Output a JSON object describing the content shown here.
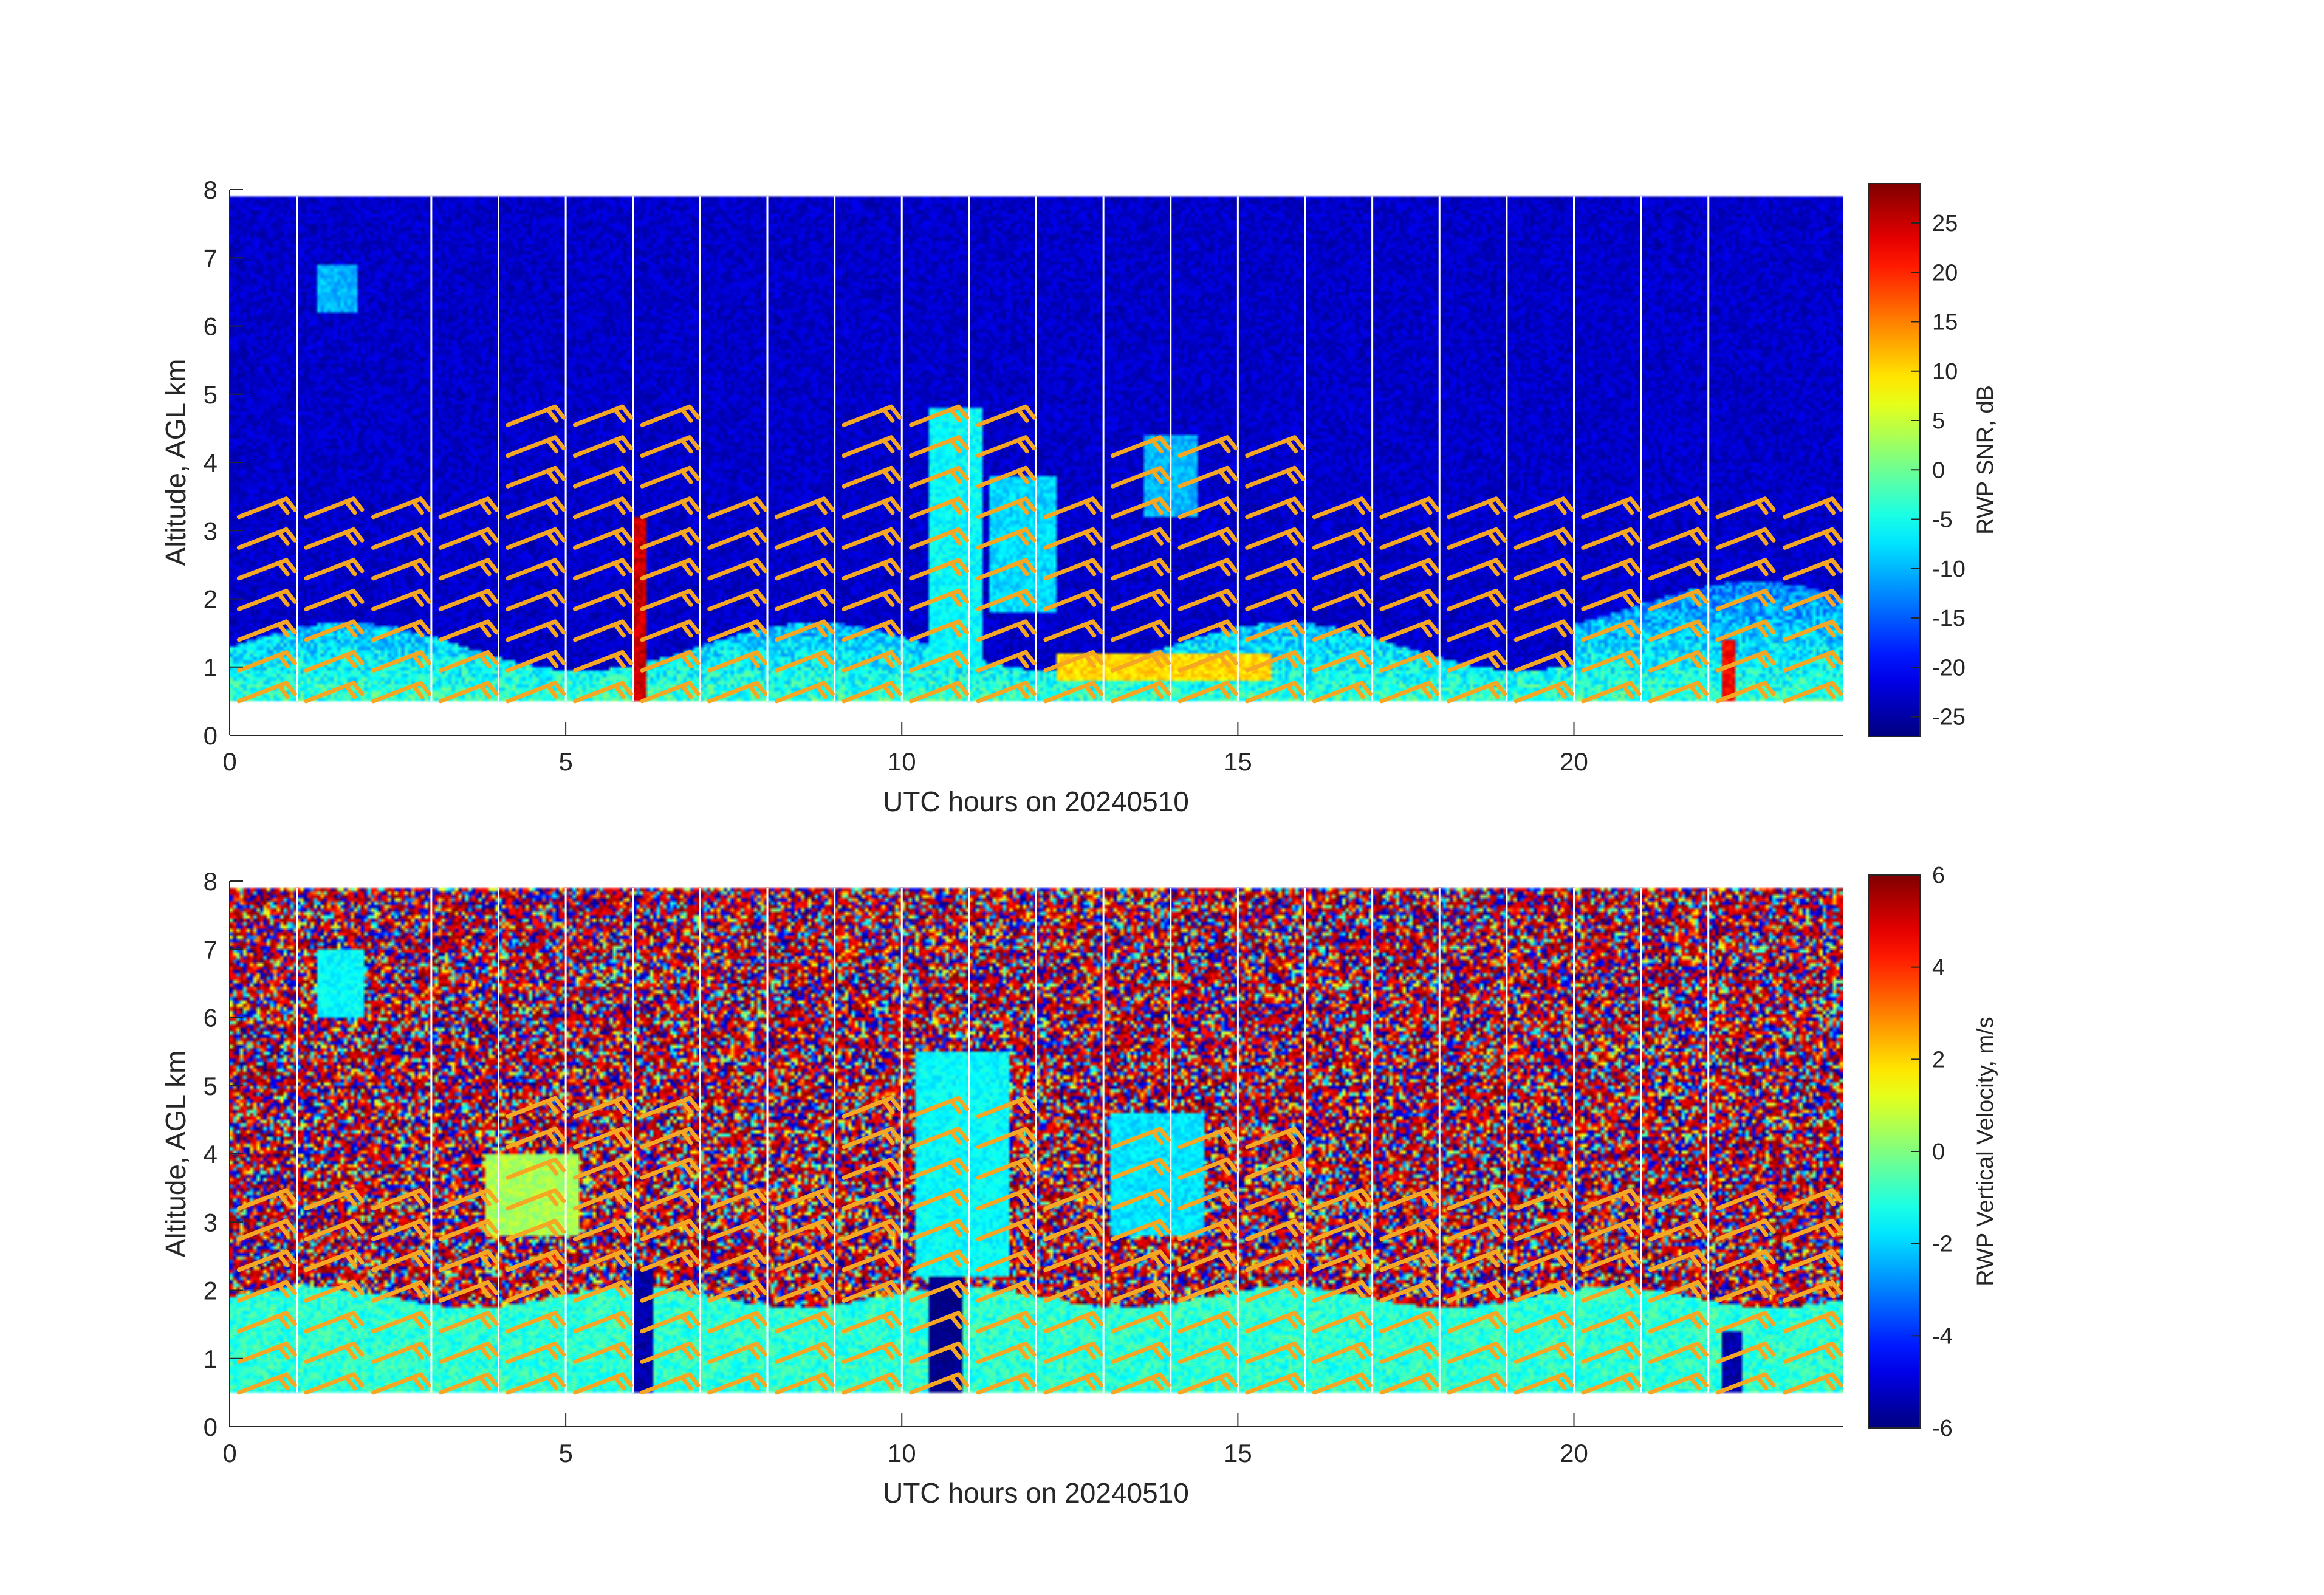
{
  "chart_data": [
    {
      "type": "heatmap",
      "xlabel": "UTC hours on 20240510",
      "ylabel": "Altitude, AGL km",
      "xlim": [
        0,
        24
      ],
      "ylim": [
        0,
        8
      ],
      "xticks": [
        0,
        5,
        10,
        15,
        20
      ],
      "yticks": [
        0,
        1,
        2,
        3,
        4,
        5,
        6,
        7,
        8
      ],
      "colorbar": {
        "label": "RWP SNR, dB",
        "range": [
          -27,
          29
        ],
        "ticks": [
          -25,
          -20,
          -15,
          -10,
          -5,
          0,
          5,
          10,
          15,
          20,
          25
        ],
        "colormap": "jet"
      },
      "data_altitude_range_km": [
        0.5,
        7.9
      ],
      "background_level": -23,
      "boundary_layer": {
        "top_km": 1.3,
        "level": -3
      },
      "features": [
        {
          "desc": "vertical streak",
          "x": 6.1,
          "alt": [
            0.5,
            3.2
          ],
          "level": 25
        },
        {
          "desc": "vertical streak",
          "x": 22.3,
          "alt": [
            0.5,
            1.4
          ],
          "level": 22
        },
        {
          "desc": "cloud plume",
          "x": [
            10.4,
            11.2
          ],
          "alt": [
            1.0,
            4.8
          ],
          "level": -6
        },
        {
          "desc": "cloud plume",
          "x": [
            11.3,
            12.3
          ],
          "alt": [
            1.8,
            3.8
          ],
          "level": -8
        },
        {
          "desc": "cloud patch",
          "x": [
            13.6,
            14.4
          ],
          "alt": [
            3.2,
            4.4
          ],
          "level": -10
        },
        {
          "desc": "cloud patch",
          "x": [
            1.3,
            1.9
          ],
          "alt": [
            6.2,
            6.9
          ],
          "level": -10
        },
        {
          "desc": "warm layer",
          "x": [
            12.3,
            15.5
          ],
          "alt": [
            0.8,
            1.2
          ],
          "level": 10
        }
      ],
      "wind_barb_color": "#f5a623",
      "wind_barb_times": [
        0.5,
        1.5,
        2.5,
        3.5,
        4.5,
        5.5,
        6.5,
        7.5,
        8.5,
        9.5,
        10.5,
        11.5,
        12.5,
        13.5,
        14.5,
        15.5,
        16.5,
        17.5,
        18.5,
        19.5,
        20.5,
        21.5,
        22.5,
        23.5
      ]
    },
    {
      "type": "heatmap",
      "xlabel": "UTC hours on 20240510",
      "ylabel": "Altitude, AGL km",
      "xlim": [
        0,
        24
      ],
      "ylim": [
        0,
        8
      ],
      "xticks": [
        0,
        5,
        10,
        15,
        20
      ],
      "yticks": [
        0,
        1,
        2,
        3,
        4,
        5,
        6,
        7,
        8
      ],
      "colorbar": {
        "label": "RWP Vertical Velocity, m/s",
        "range": [
          -6,
          6
        ],
        "ticks": [
          -6,
          -4,
          -2,
          0,
          2,
          4,
          6
        ],
        "colormap": "jet"
      },
      "data_altitude_range_km": [
        0.5,
        7.9
      ],
      "background": "noise",
      "boundary_layer": {
        "top_km": 1.9,
        "level": -1
      },
      "features": [
        {
          "desc": "strong downdraft column",
          "x": [
            10.4,
            10.9
          ],
          "alt": [
            0.5,
            2.2
          ],
          "level": -6
        },
        {
          "desc": "downdraft column",
          "x": [
            6.0,
            6.3
          ],
          "alt": [
            0.5,
            2.3
          ],
          "level": -5.5
        },
        {
          "desc": "downdraft column",
          "x": [
            22.2,
            22.5
          ],
          "alt": [
            0.5,
            1.4
          ],
          "level": -5.5
        },
        {
          "desc": "cloud plume",
          "x": [
            10.2,
            11.6
          ],
          "alt": [
            2.2,
            5.5
          ],
          "level": -1.5
        },
        {
          "desc": "cloud patch",
          "x": [
            13.1,
            14.5
          ],
          "alt": [
            2.8,
            4.6
          ],
          "level": -1.8
        },
        {
          "desc": "cloud patch",
          "x": [
            1.3,
            2.0
          ],
          "alt": [
            6.0,
            7.0
          ],
          "level": -1.5
        },
        {
          "desc": "cloud patch",
          "x": [
            3.8,
            5.2
          ],
          "alt": [
            2.8,
            4.0
          ],
          "level": 0.5
        }
      ],
      "wind_barb_color": "#f5a623",
      "wind_barb_times": [
        0.5,
        1.5,
        2.5,
        3.5,
        4.5,
        5.5,
        6.5,
        7.5,
        8.5,
        9.5,
        10.5,
        11.5,
        12.5,
        13.5,
        14.5,
        15.5,
        16.5,
        17.5,
        18.5,
        19.5,
        20.5,
        21.5,
        22.5,
        23.5
      ]
    }
  ]
}
